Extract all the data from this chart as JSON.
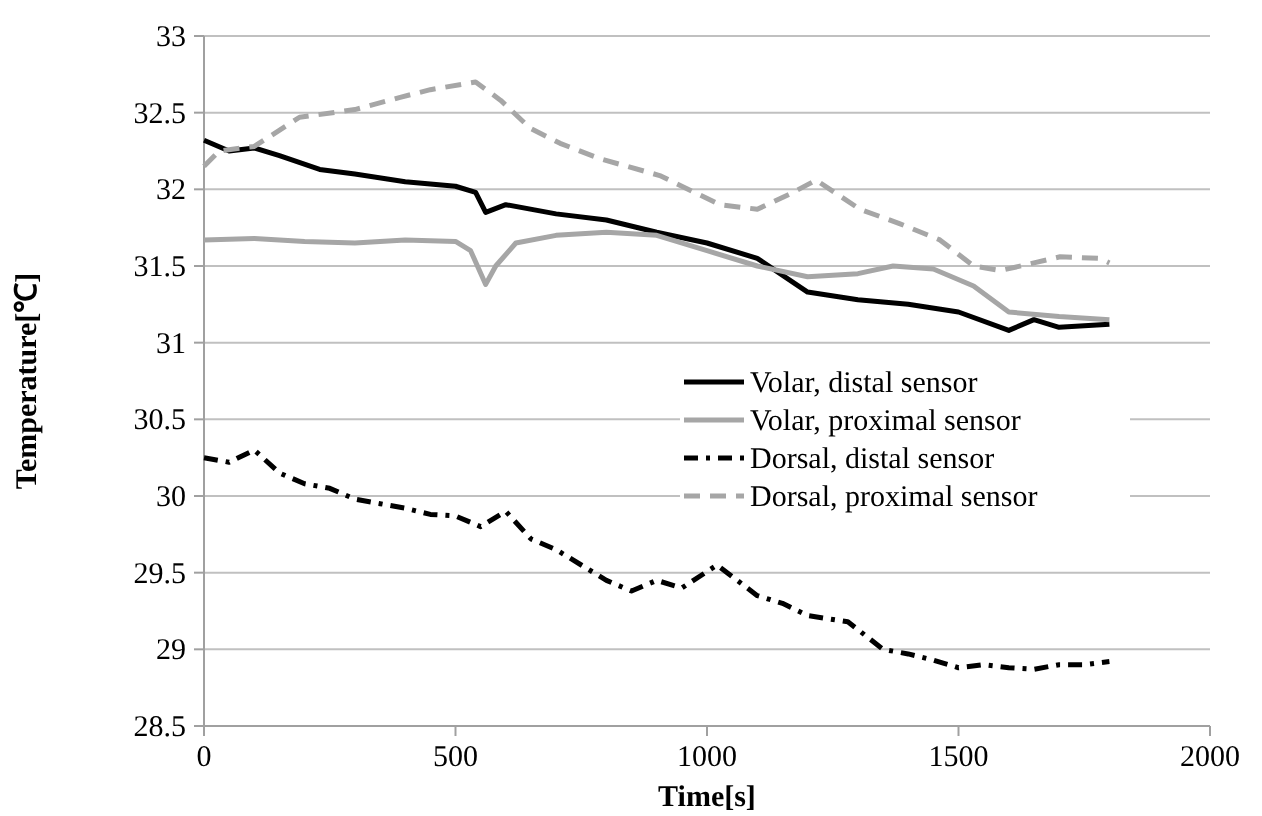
{
  "chart_data": {
    "type": "line",
    "xlabel": "Time[s]",
    "ylabel": "Temperature[℃]",
    "xlim": [
      0,
      2000
    ],
    "ylim": [
      28.5,
      33
    ],
    "xticks": [
      0,
      500,
      1000,
      1500,
      2000
    ],
    "yticks": [
      28.5,
      29,
      29.5,
      30,
      30.5,
      31,
      31.5,
      32,
      32.5,
      33
    ],
    "grid": "y",
    "legend": "bottom right",
    "series": [
      {
        "name": "Volar, distal sensor",
        "color": "#000000",
        "line_style": "solid",
        "x": [
          0,
          50,
          100,
          150,
          230,
          300,
          400,
          500,
          540,
          560,
          600,
          700,
          800,
          900,
          1000,
          1100,
          1200,
          1300,
          1400,
          1500,
          1600,
          1650,
          1700,
          1800
        ],
        "values": [
          32.32,
          32.25,
          32.27,
          32.22,
          32.13,
          32.1,
          32.05,
          32.02,
          31.98,
          31.85,
          31.9,
          31.84,
          31.8,
          31.72,
          31.65,
          31.55,
          31.33,
          31.28,
          31.25,
          31.2,
          31.08,
          31.15,
          31.1,
          31.12
        ]
      },
      {
        "name": "Volar, proximal sensor",
        "color": "#a6a6a6",
        "line_style": "solid",
        "x": [
          0,
          100,
          200,
          300,
          400,
          500,
          530,
          560,
          580,
          620,
          700,
          800,
          900,
          1000,
          1100,
          1200,
          1300,
          1370,
          1450,
          1530,
          1600,
          1700,
          1800
        ],
        "values": [
          31.67,
          31.68,
          31.66,
          31.65,
          31.67,
          31.66,
          31.6,
          31.38,
          31.5,
          31.65,
          31.7,
          31.72,
          31.7,
          31.6,
          31.5,
          31.43,
          31.45,
          31.5,
          31.48,
          31.37,
          31.2,
          31.17,
          31.15
        ]
      },
      {
        "name": "Dorsal, distal sensor",
        "color": "#000000",
        "line_style": "dotted",
        "x": [
          0,
          50,
          100,
          150,
          200,
          250,
          300,
          350,
          400,
          450,
          500,
          550,
          600,
          650,
          700,
          750,
          800,
          850,
          900,
          950,
          1020,
          1100,
          1150,
          1200,
          1280,
          1350,
          1400,
          1450,
          1500,
          1550,
          1600,
          1650,
          1700,
          1750,
          1800
        ],
        "values": [
          30.25,
          30.22,
          30.3,
          30.15,
          30.08,
          30.05,
          29.98,
          29.95,
          29.92,
          29.88,
          29.87,
          29.8,
          29.9,
          29.72,
          29.65,
          29.55,
          29.45,
          29.38,
          29.45,
          29.4,
          29.55,
          29.35,
          29.3,
          29.22,
          29.18,
          29.0,
          28.97,
          28.93,
          28.88,
          28.9,
          28.88,
          28.87,
          28.9,
          28.9,
          28.92
        ]
      },
      {
        "name": "Dorsal, proximal sensor",
        "color": "#a6a6a6",
        "line_style": "dashed",
        "x": [
          0,
          30,
          100,
          190,
          300,
          390,
          450,
          540,
          590,
          648,
          708,
          787,
          906,
          1026,
          1100,
          1165,
          1217,
          1304,
          1380,
          1463,
          1530,
          1583,
          1650,
          1702,
          1781,
          1800
        ],
        "values": [
          32.15,
          32.25,
          32.28,
          32.47,
          32.52,
          32.6,
          32.65,
          32.7,
          32.58,
          32.4,
          32.3,
          32.2,
          32.09,
          31.9,
          31.87,
          31.97,
          32.06,
          31.87,
          31.78,
          31.67,
          31.5,
          31.47,
          31.52,
          31.56,
          31.55,
          31.52
        ]
      }
    ]
  }
}
